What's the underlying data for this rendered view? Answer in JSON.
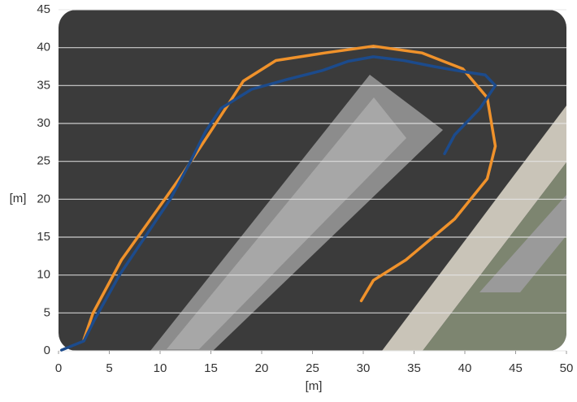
{
  "chart_data": {
    "type": "line",
    "xlabel": "[m]",
    "ylabel": "[m]",
    "xlim": [
      0,
      50
    ],
    "ylim": [
      0,
      45
    ],
    "xticks": [
      0,
      5,
      10,
      15,
      20,
      25,
      30,
      35,
      40,
      45,
      50
    ],
    "yticks": [
      0,
      5,
      10,
      15,
      20,
      25,
      30,
      35,
      40,
      45
    ],
    "grid": true,
    "series": [
      {
        "color": "#f0922b",
        "x": [
          2.5,
          3.4,
          6.2,
          9.4,
          12.2,
          15,
          18.2,
          21.4,
          26.2,
          31,
          35.8,
          39.8,
          42.2,
          43,
          42.2,
          39,
          34.2,
          31,
          29.8
        ],
        "values": [
          1.5,
          5,
          12,
          18,
          23.3,
          29,
          35.6,
          38.3,
          39.3,
          40.2,
          39.3,
          37.2,
          33.4,
          27,
          22.7,
          17.4,
          12,
          9.3,
          6.6
        ]
      },
      {
        "color": "#1c4b8c",
        "x": [
          0.3,
          2.5,
          3.5,
          6,
          9,
          11,
          13,
          14.5,
          16,
          19,
          22.5,
          26,
          28.5,
          31,
          34,
          37,
          40,
          42,
          43,
          41.5,
          39,
          38
        ],
        "values": [
          0.1,
          1.3,
          4,
          10,
          16,
          20,
          25,
          29,
          32,
          34.5,
          35.8,
          37,
          38.2,
          38.8,
          38.3,
          37.5,
          36.8,
          36.4,
          35,
          32,
          28.5,
          26
        ]
      }
    ]
  }
}
